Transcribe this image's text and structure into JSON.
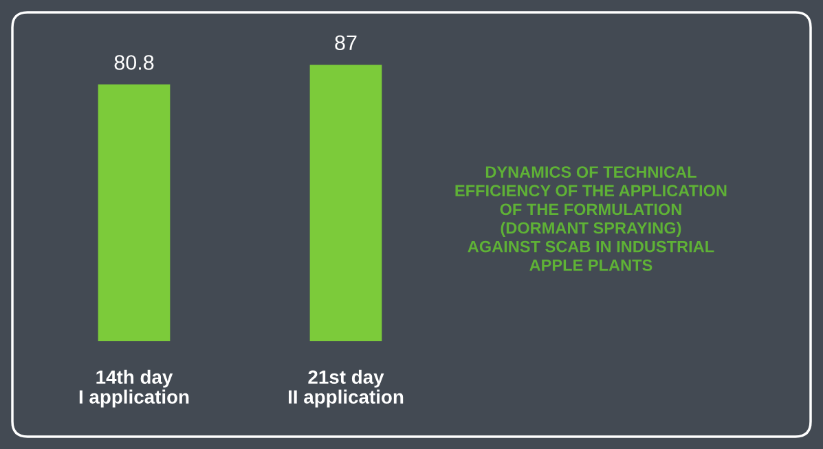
{
  "chart_data": {
    "type": "bar",
    "title": "DYNAMICS OF TECHNICAL\nEFFICIENCY OF THE APPLICATION\nOF THE FORMULATION\n(DORMANT SPRAYING)\nAGAINST SCAB IN INDUSTRIAL\nAPPLE PLANTS",
    "categories": [
      "14th day\nI application",
      "21st day\nII application"
    ],
    "values": [
      80.8,
      87
    ],
    "color": "#7ccb3a",
    "data_labels": true,
    "tick_labels": "x"
  }
}
